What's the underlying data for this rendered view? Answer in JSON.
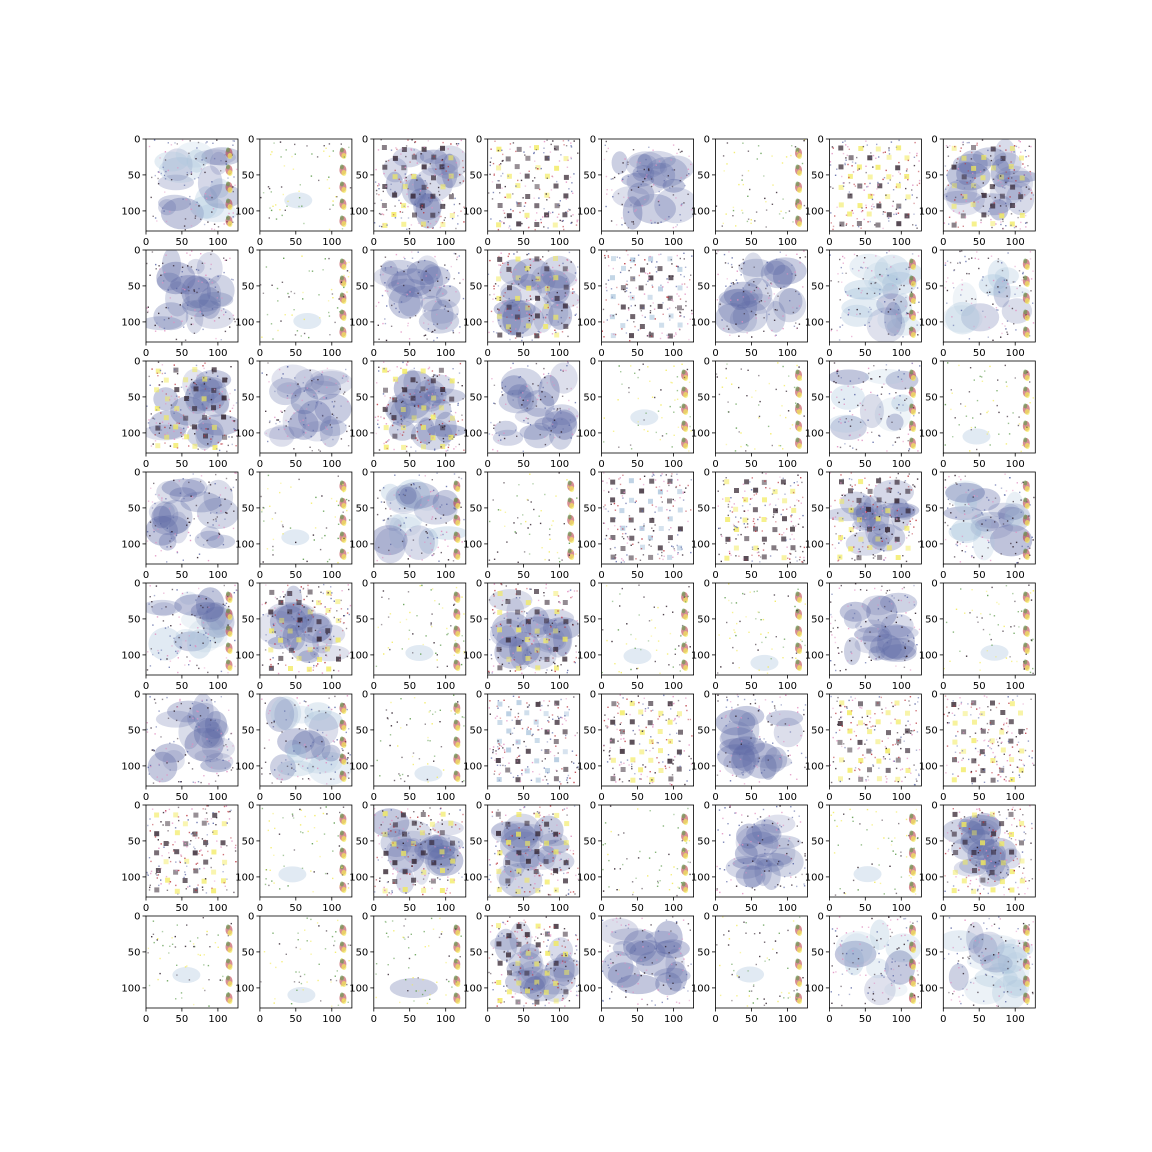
{
  "chart_data": {
    "type": "image-grid",
    "rows": 8,
    "cols": 8,
    "image_size": [
      128,
      128
    ],
    "xlim": [
      0,
      128
    ],
    "ylim": [
      128,
      0
    ],
    "xticks": [
      0,
      50,
      100
    ],
    "yticks": [
      0,
      50,
      100
    ],
    "xtick_labels": [
      "0",
      "50",
      "100"
    ],
    "ytick_labels": [
      "0",
      "50",
      "100"
    ],
    "grid": false,
    "title": "",
    "xlabel": "",
    "ylabel": "",
    "colors": {
      "blob": "#5e6aa6",
      "blob_light": "#a9c4dc",
      "checker_yellow": "#f2ea5a",
      "checker_dark": "#2a1a26",
      "accent_red": "#b8323c",
      "accent_green": "#5c9a4a",
      "speckle_pink": "#e08fc0"
    },
    "panel_styles": [
      "blob-right",
      "sparse-right",
      "checker-dark",
      "checker-yellow",
      "blob-dark",
      "sparse-corner",
      "checker-yellow",
      "checker-dark",
      "blob-dark",
      "sparse-right",
      "blob-dark",
      "checker-blob",
      "checker-light",
      "blob-left",
      "blob-right",
      "blob-wing",
      "checker-blob",
      "blob-dark",
      "checker-dark",
      "blob-square",
      "sparse-corner",
      "sparse-corner",
      "blob-wing",
      "sparse-right",
      "blob-dark",
      "sparse-checker",
      "blob-right",
      "sparse-corner",
      "checker-light",
      "checker-yellow",
      "checker-dark",
      "blob-right",
      "blob-right",
      "checker-dark",
      "sparse-right",
      "checker-dark",
      "sparse-corner",
      "sparse-right",
      "blob-dark",
      "sparse-right",
      "blob-square",
      "blob-right",
      "sparse-right",
      "checker-light",
      "checker-yellow",
      "blob-square",
      "checker-yellow",
      "checker-yellow",
      "checker-yellow",
      "sparse-right",
      "checker-dark",
      "checker-dark",
      "sparse-corner",
      "blob-dark",
      "sparse-right",
      "checker-dark",
      "sparse-right",
      "sparse-right",
      "sparse-bottom",
      "checker-dark",
      "blob-square",
      "sparse-corner",
      "blob-wing",
      "blob-right"
    ]
  }
}
